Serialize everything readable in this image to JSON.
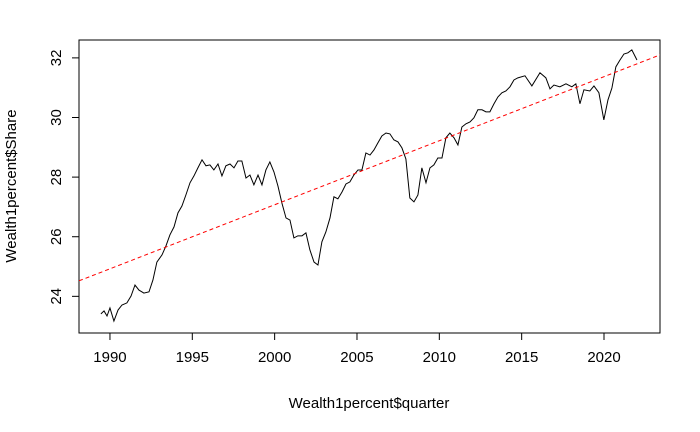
{
  "chart_data": {
    "type": "line",
    "xlabel": "Wealth1percent$quarter",
    "ylabel": "Wealth1percent$Share",
    "xlim": [
      1988.12,
      2023.4
    ],
    "ylim": [
      22.77,
      32.6
    ],
    "xticks": [
      1990,
      1995,
      2000,
      2005,
      2010,
      2015,
      2020
    ],
    "yticks": [
      24,
      26,
      28,
      30,
      32
    ],
    "x": [
      1989.45,
      1989.64,
      1989.82,
      1990.0,
      1990.24,
      1990.49,
      1990.73,
      1991.03,
      1991.28,
      1991.52,
      1991.76,
      1992.06,
      1992.37,
      1992.61,
      1992.85,
      1993.16,
      1993.4,
      1993.64,
      1993.89,
      1994.13,
      1994.37,
      1994.61,
      1994.86,
      1995.1,
      1995.34,
      1995.59,
      1995.83,
      1996.07,
      1996.31,
      1996.56,
      1996.8,
      1997.04,
      1997.29,
      1997.53,
      1997.77,
      1998.01,
      1998.26,
      1998.5,
      1998.74,
      1998.99,
      1999.23,
      1999.47,
      1999.71,
      1999.96,
      2000.2,
      2000.44,
      2000.69,
      2000.93,
      2001.17,
      2001.41,
      2001.66,
      2001.9,
      2002.14,
      2002.39,
      2002.63,
      2002.87,
      2003.11,
      2003.36,
      2003.6,
      2003.84,
      2004.09,
      2004.33,
      2004.57,
      2004.81,
      2005.06,
      2005.3,
      2005.54,
      2005.79,
      2006.03,
      2006.27,
      2006.51,
      2006.76,
      2007.0,
      2007.24,
      2007.49,
      2007.73,
      2007.97,
      2008.21,
      2008.46,
      2008.7,
      2008.94,
      2009.19,
      2009.43,
      2009.67,
      2009.91,
      2010.16,
      2010.4,
      2010.64,
      2010.89,
      2011.13,
      2011.37,
      2011.62,
      2011.86,
      2012.1,
      2012.34,
      2012.59,
      2012.83,
      2013.07,
      2013.32,
      2013.56,
      2013.8,
      2014.04,
      2014.29,
      2014.53,
      2014.77,
      2015.2,
      2015.62,
      2016.11,
      2016.47,
      2016.72,
      2016.96,
      2017.32,
      2017.69,
      2018.05,
      2018.29,
      2018.54,
      2018.78,
      2019.14,
      2019.39,
      2019.69,
      2019.99,
      2020.24,
      2020.48,
      2020.72,
      2020.97,
      2021.21,
      2021.45,
      2021.69,
      2022.0
    ],
    "series": [
      {
        "color": "#000000",
        "values": [
          23.41,
          23.51,
          23.34,
          23.61,
          23.17,
          23.54,
          23.71,
          23.78,
          24.01,
          24.38,
          24.21,
          24.11,
          24.15,
          24.55,
          25.15,
          25.39,
          25.69,
          26.06,
          26.33,
          26.8,
          27.03,
          27.4,
          27.81,
          28.04,
          28.31,
          28.58,
          28.38,
          28.41,
          28.24,
          28.44,
          28.04,
          28.38,
          28.44,
          28.31,
          28.54,
          28.54,
          27.97,
          28.07,
          27.74,
          28.07,
          27.74,
          28.24,
          28.51,
          28.17,
          27.7,
          27.13,
          26.63,
          26.56,
          25.96,
          26.03,
          26.03,
          26.13,
          25.56,
          25.15,
          25.05,
          25.83,
          26.16,
          26.63,
          27.34,
          27.27,
          27.5,
          27.77,
          27.84,
          28.07,
          28.24,
          28.24,
          28.81,
          28.74,
          28.91,
          29.15,
          29.38,
          29.48,
          29.45,
          29.25,
          29.18,
          28.98,
          28.61,
          27.3,
          27.17,
          27.4,
          28.31,
          27.81,
          28.31,
          28.41,
          28.64,
          28.64,
          29.32,
          29.48,
          29.32,
          29.08,
          29.68,
          29.79,
          29.85,
          29.99,
          30.26,
          30.26,
          30.19,
          30.19,
          30.46,
          30.69,
          30.83,
          30.89,
          31.03,
          31.26,
          31.33,
          31.4,
          31.06,
          31.5,
          31.33,
          30.96,
          31.09,
          31.03,
          31.13,
          31.03,
          31.13,
          30.46,
          30.93,
          30.89,
          31.06,
          30.83,
          29.92,
          30.59,
          30.99,
          31.7,
          31.93,
          32.13,
          32.17,
          32.27,
          31.93
        ]
      }
    ],
    "trend_line": {
      "x": [
        1988.12,
        2023.4
      ],
      "values": [
        24.52,
        32.1
      ],
      "color": "#ff0000",
      "dashed": true
    }
  }
}
